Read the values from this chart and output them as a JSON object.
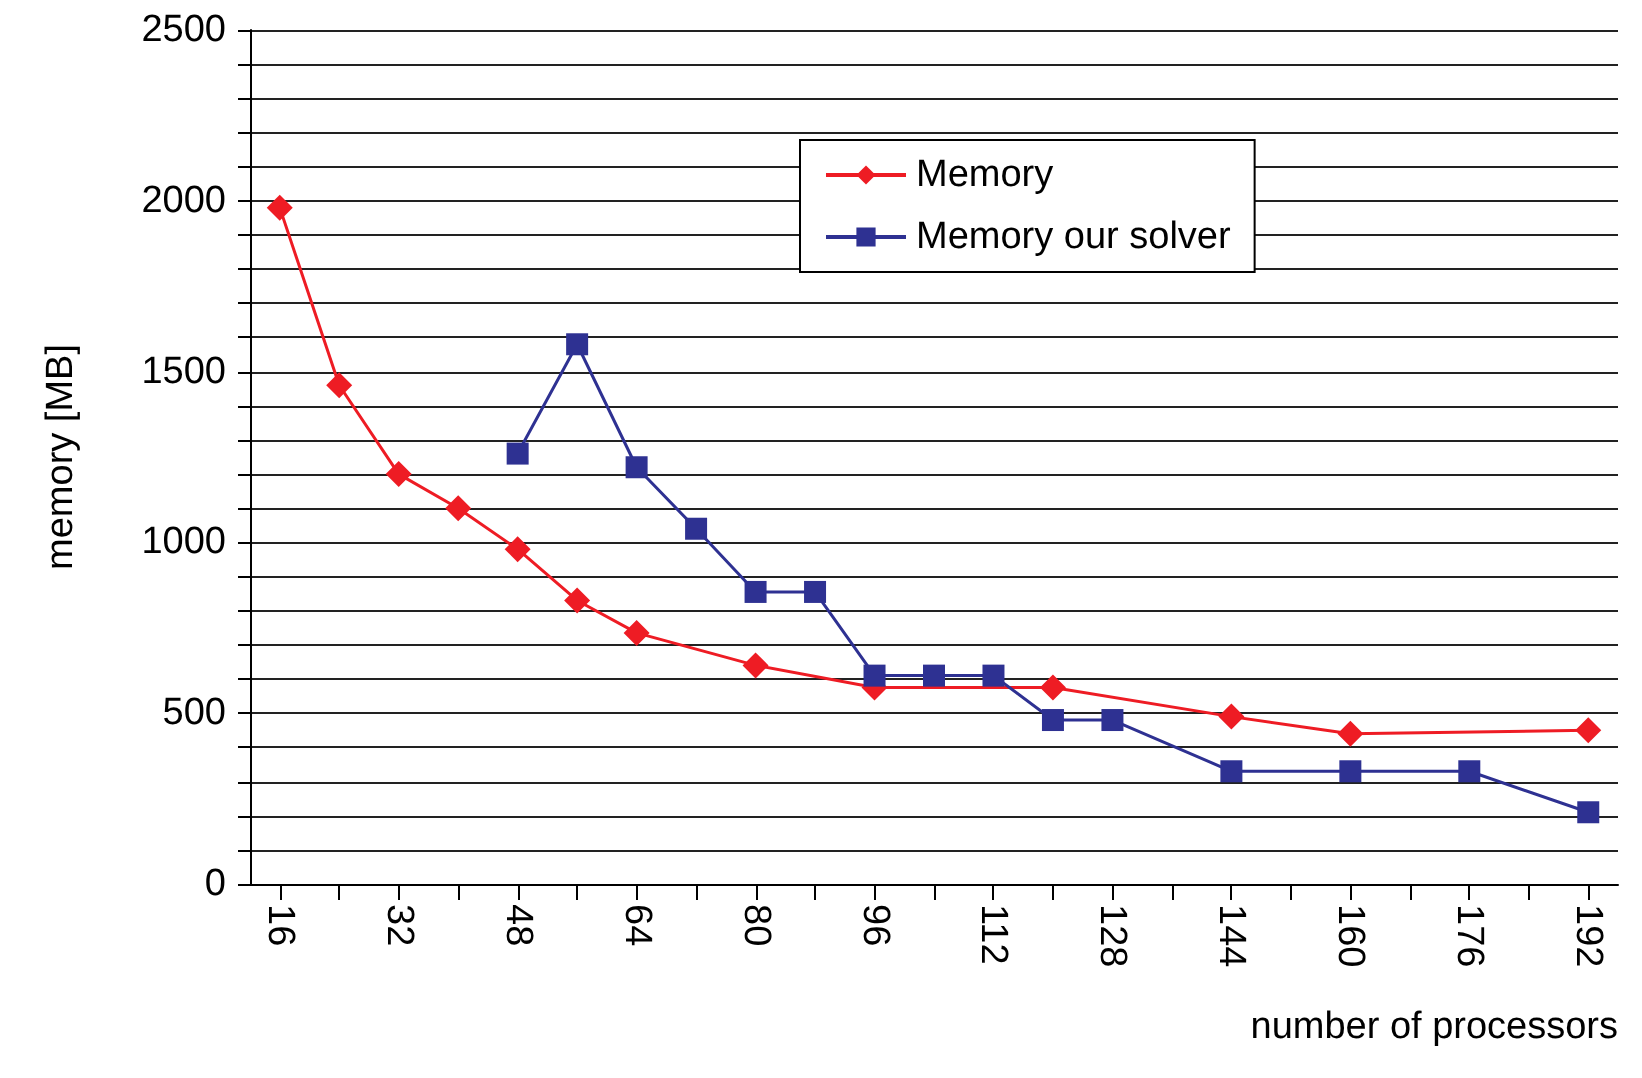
{
  "chart_data": {
    "type": "line",
    "xlabel": "number of processors",
    "ylabel": "memory [MB]",
    "xlim": [
      12,
      196
    ],
    "xticks": [
      16,
      {
        "value": 24,
        "label": null
      },
      32,
      {
        "value": 40,
        "label": null
      },
      48,
      {
        "value": 56,
        "label": null
      },
      64,
      {
        "value": 72,
        "label": null
      },
      80,
      {
        "value": 88,
        "label": null
      },
      96,
      {
        "value": 104,
        "label": null
      },
      112,
      {
        "value": 120,
        "label": null
      },
      128,
      {
        "value": 136,
        "label": null
      },
      144,
      {
        "value": 152,
        "label": null
      },
      160,
      {
        "value": 168,
        "label": null
      },
      176,
      {
        "value": 184,
        "label": null
      },
      192
    ],
    "ylim": [
      0,
      2500
    ],
    "yticks": [
      0,
      {
        "value": 100,
        "label": null
      },
      {
        "value": 200,
        "label": null
      },
      {
        "value": 300,
        "label": null
      },
      {
        "value": 400,
        "label": null
      },
      500,
      {
        "value": 600,
        "label": null
      },
      {
        "value": 700,
        "label": null
      },
      {
        "value": 800,
        "label": null
      },
      {
        "value": 900,
        "label": null
      },
      1000,
      {
        "value": 1100,
        "label": null
      },
      {
        "value": 1200,
        "label": null
      },
      {
        "value": 1300,
        "label": null
      },
      {
        "value": 1400,
        "label": null
      },
      1500,
      {
        "value": 1600,
        "label": null
      },
      {
        "value": 1700,
        "label": null
      },
      {
        "value": 1800,
        "label": null
      },
      {
        "value": 1900,
        "label": null
      },
      2000,
      {
        "value": 2100,
        "label": null
      },
      {
        "value": 2200,
        "label": null
      },
      {
        "value": 2300,
        "label": null
      },
      {
        "value": 2400,
        "label": null
      },
      2500
    ],
    "grid": "y",
    "legend": "top",
    "series": [
      {
        "name": "Memory",
        "color": "#ee1c24",
        "marker": "diamond",
        "x": [
          16,
          24,
          32,
          40,
          48,
          56,
          64,
          80,
          96,
          120,
          144,
          160,
          192
        ],
        "values": [
          1980,
          1460,
          1200,
          1100,
          980,
          830,
          735,
          640,
          575,
          575,
          490,
          440,
          450
        ]
      },
      {
        "name": "Memory our solver",
        "color": "#2e3192",
        "marker": "square",
        "x": [
          48,
          56,
          64,
          72,
          80,
          88,
          96,
          104,
          112,
          120,
          128,
          144,
          160,
          176,
          192
        ],
        "values": [
          1260,
          1580,
          1220,
          1040,
          855,
          855,
          610,
          610,
          610,
          480,
          480,
          330,
          330,
          330,
          210
        ]
      }
    ]
  }
}
